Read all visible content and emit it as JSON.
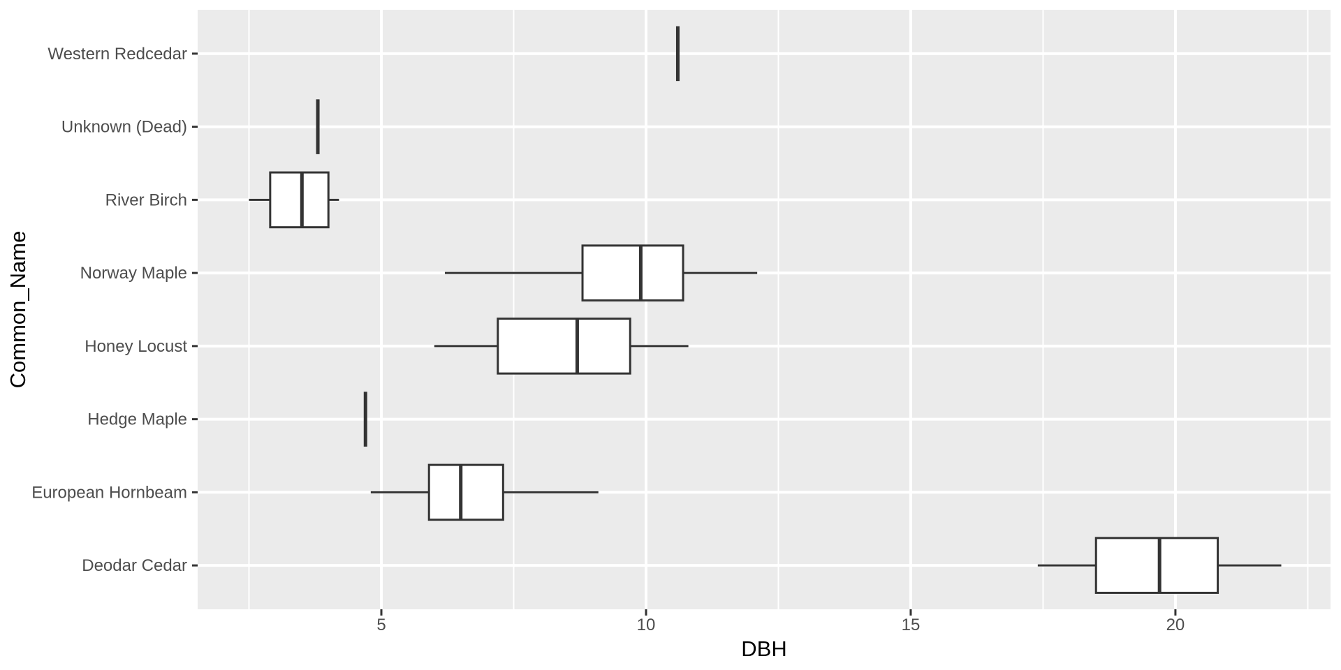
{
  "chart_data": {
    "type": "boxplot",
    "orientation": "horizontal",
    "title": "",
    "xlabel": "DBH",
    "ylabel": "Common_Name",
    "xlim": [
      1.53,
      22.93
    ],
    "x_major_ticks": [
      5,
      10,
      15,
      20
    ],
    "x_major_tick_labels": [
      "5",
      "10",
      "15",
      "20"
    ],
    "x_minor_gridlines": [
      2.5,
      7.5,
      12.5,
      17.5,
      22.5
    ],
    "grid": true,
    "legend": false,
    "categories_top_to_bottom": [
      "Western Redcedar",
      "Unknown (Dead)",
      "River Birch",
      "Norway Maple",
      "Honey Locust",
      "Hedge Maple",
      "European Hornbeam",
      "Deodar Cedar"
    ],
    "series": [
      {
        "category": "Western Redcedar",
        "min": 10.6,
        "q1": 10.6,
        "median": 10.6,
        "q3": 10.6,
        "max": 10.6
      },
      {
        "category": "Unknown (Dead)",
        "min": 3.8,
        "q1": 3.8,
        "median": 3.8,
        "q3": 3.8,
        "max": 3.8
      },
      {
        "category": "River Birch",
        "min": 2.5,
        "q1": 2.9,
        "median": 3.5,
        "q3": 4.0,
        "max": 4.2
      },
      {
        "category": "Norway Maple",
        "min": 6.2,
        "q1": 8.8,
        "median": 9.9,
        "q3": 10.7,
        "max": 12.1
      },
      {
        "category": "Honey Locust",
        "min": 6.0,
        "q1": 7.2,
        "median": 8.7,
        "q3": 9.7,
        "max": 10.8
      },
      {
        "category": "Hedge Maple",
        "min": 4.7,
        "q1": 4.7,
        "median": 4.7,
        "q3": 4.7,
        "max": 4.7
      },
      {
        "category": "European Hornbeam",
        "min": 4.8,
        "q1": 5.9,
        "median": 6.5,
        "q3": 7.3,
        "max": 9.1
      },
      {
        "category": "Deodar Cedar",
        "min": 17.4,
        "q1": 18.5,
        "median": 19.7,
        "q3": 20.8,
        "max": 22.0
      }
    ],
    "colors": {
      "panel_bg": "#EBEBEB",
      "grid": "#FFFFFF",
      "box_border": "#333333",
      "box_fill": "#FFFFFF",
      "whisker": "#333333",
      "tick_mark": "#333333",
      "tick_text": "#4D4D4D",
      "axis_title": "#000000",
      "page_bg": "#FFFFFF"
    }
  }
}
